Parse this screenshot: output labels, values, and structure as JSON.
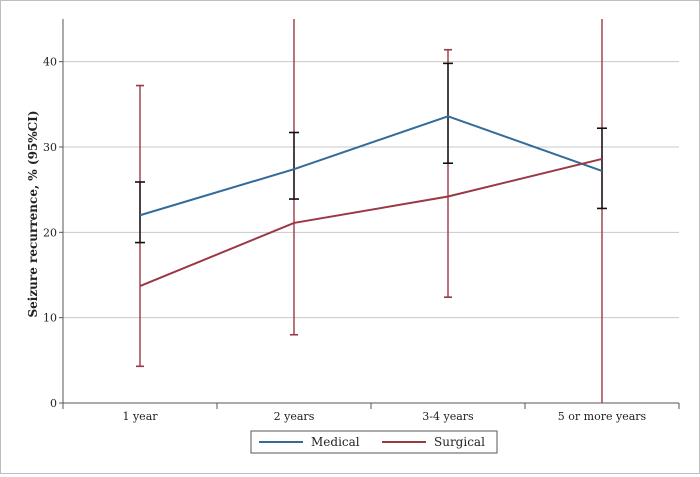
{
  "chart_data": {
    "type": "line",
    "title": "",
    "xlabel": "",
    "ylabel": "Seizure recurrence, % (95%CI)",
    "categories": [
      "1 year",
      "2 years",
      "3-4 years",
      "5 or more years"
    ],
    "ylim": [
      0,
      45
    ],
    "yticks": [
      0,
      10,
      20,
      30,
      40
    ],
    "grid": true,
    "legend_position": "bottom-center",
    "series": [
      {
        "name": "Medical",
        "color": "#336c9b",
        "error_color": "#111111",
        "values": [
          22.0,
          27.4,
          33.6,
          27.2
        ],
        "ci_low": [
          18.8,
          23.9,
          28.1,
          22.8
        ],
        "ci_high": [
          25.9,
          31.7,
          39.8,
          32.2
        ]
      },
      {
        "name": "Surgical",
        "color": "#9b3844",
        "error_color": "#9b3844",
        "values": [
          13.7,
          21.1,
          24.2,
          28.6
        ],
        "ci_low": [
          4.3,
          8.0,
          12.4,
          0
        ],
        "ci_high": [
          37.2,
          45.4,
          41.4,
          45
        ]
      }
    ]
  }
}
